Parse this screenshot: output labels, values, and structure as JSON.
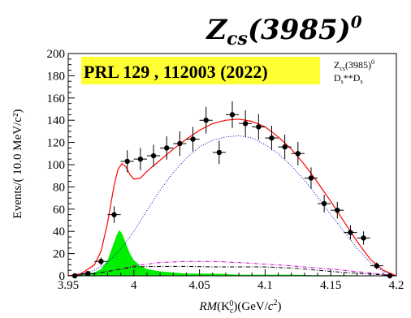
{
  "header": {
    "title_main": "Z",
    "title_sub": "cs",
    "title_rest": "(3985)",
    "title_sup": "0"
  },
  "chart_data": {
    "type": "scatter",
    "xlim": [
      3.95,
      4.2
    ],
    "ylim": [
      0,
      200
    ],
    "xticks": [
      "3.95",
      "4",
      "4.05",
      "4.1",
      "4.15",
      "4.2"
    ],
    "xtick_values": [
      3.95,
      4.0,
      4.05,
      4.1,
      4.15,
      4.2
    ],
    "yticks": [
      "0",
      "20",
      "40",
      "60",
      "80",
      "100",
      "120",
      "140",
      "160",
      "180",
      "200"
    ],
    "ytick_values": [
      0,
      20,
      40,
      60,
      80,
      100,
      120,
      140,
      160,
      180,
      200
    ],
    "ylabel": "Events/( 10.0 MeV/c²)",
    "xlabel": {
      "rm": "RM",
      "open": "(K",
      "sub": "c",
      "sup": "0",
      "close": ")(GeV/",
      "c": "c",
      "sq": "2",
      "end": ")"
    },
    "annotation": "PRL 129 , 112003 (2022)",
    "annotation_bg": "#ffff33",
    "annotation_color": "#dd0000",
    "legend": {
      "position": "top-right",
      "entries": [
        {
          "main": "Z",
          "sub": "cs",
          "rest": "(3985)",
          "sup": "0"
        },
        {
          "main": "D",
          "sub": "s",
          "rest": "**D",
          "sub2": "s"
        }
      ]
    },
    "data_points": [
      {
        "x": 3.955,
        "y": 0,
        "err": 1
      },
      {
        "x": 3.965,
        "y": 2,
        "err": 1.5
      },
      {
        "x": 3.975,
        "y": 13,
        "err": 3.5
      },
      {
        "x": 3.985,
        "y": 55,
        "err": 7.5
      },
      {
        "x": 3.995,
        "y": 103,
        "err": 10
      },
      {
        "x": 4.005,
        "y": 105,
        "err": 10
      },
      {
        "x": 4.015,
        "y": 108,
        "err": 10
      },
      {
        "x": 4.025,
        "y": 115,
        "err": 10.5
      },
      {
        "x": 4.035,
        "y": 119,
        "err": 11
      },
      {
        "x": 4.045,
        "y": 123,
        "err": 11
      },
      {
        "x": 4.055,
        "y": 140,
        "err": 12
      },
      {
        "x": 4.065,
        "y": 111,
        "err": 10.5
      },
      {
        "x": 4.075,
        "y": 145,
        "err": 12
      },
      {
        "x": 4.085,
        "y": 137,
        "err": 12
      },
      {
        "x": 4.095,
        "y": 134,
        "err": 11.5
      },
      {
        "x": 4.105,
        "y": 124,
        "err": 11
      },
      {
        "x": 4.115,
        "y": 116,
        "err": 11
      },
      {
        "x": 4.125,
        "y": 110,
        "err": 10.5
      },
      {
        "x": 4.135,
        "y": 88,
        "err": 9.5
      },
      {
        "x": 4.145,
        "y": 65,
        "err": 8
      },
      {
        "x": 4.155,
        "y": 59,
        "err": 7.5
      },
      {
        "x": 4.165,
        "y": 39,
        "err": 6.5
      },
      {
        "x": 4.175,
        "y": 34,
        "err": 6
      },
      {
        "x": 4.185,
        "y": 9,
        "err": 3
      },
      {
        "x": 4.195,
        "y": 0,
        "err": 1
      }
    ],
    "total_fit": {
      "color": "#ff0000",
      "x": [
        3.95,
        3.96,
        3.97,
        3.975,
        3.98,
        3.985,
        3.988,
        3.991,
        3.994,
        3.997,
        4.0,
        4.005,
        4.01,
        4.02,
        4.03,
        4.04,
        4.05,
        4.06,
        4.07,
        4.08,
        4.09,
        4.1,
        4.11,
        4.12,
        4.13,
        4.14,
        4.15,
        4.16,
        4.17,
        4.18,
        4.19,
        4.2
      ],
      "y": [
        0,
        2,
        10,
        22,
        48,
        82,
        96,
        101,
        98,
        91,
        87,
        88,
        94,
        104,
        114,
        123,
        131,
        137,
        140,
        141,
        139,
        134,
        125,
        114,
        100,
        84,
        67,
        49,
        31,
        15,
        5,
        0
      ]
    },
    "background_fit": {
      "color": "#0000cc",
      "x": [
        3.95,
        3.96,
        3.97,
        3.98,
        3.99,
        4.0,
        4.01,
        4.02,
        4.03,
        4.04,
        4.05,
        4.06,
        4.07,
        4.08,
        4.09,
        4.1,
        4.11,
        4.12,
        4.13,
        4.14,
        4.15,
        4.16,
        4.17,
        4.18,
        4.19,
        4.2
      ],
      "y": [
        0,
        1,
        5,
        12,
        24,
        40,
        59,
        77,
        93,
        106,
        116,
        122,
        125,
        126,
        124,
        118,
        110,
        99,
        86,
        71,
        55,
        40,
        25,
        12,
        4,
        0
      ]
    },
    "signal": {
      "color": "#00ee00",
      "x": [
        3.95,
        3.96,
        3.97,
        3.975,
        3.98,
        3.984,
        3.987,
        3.989,
        3.991,
        3.994,
        3.997,
        4.0,
        4.005,
        4.01,
        4.02,
        4.03,
        4.04,
        4.06,
        4.08,
        4.1,
        4.12,
        4.14,
        4.16,
        4.18,
        4.2
      ],
      "y": [
        0,
        1,
        3,
        6,
        14,
        27,
        37,
        41,
        38,
        29,
        20,
        14,
        9,
        6,
        4,
        3,
        2,
        2,
        1,
        1,
        1,
        0.5,
        0.5,
        0.3,
        0
      ]
    },
    "ds_component": {
      "color": "#cc00cc",
      "x": [
        3.95,
        3.96,
        3.97,
        3.98,
        3.99,
        4.0,
        4.02,
        4.04,
        4.06,
        4.08,
        4.1,
        4.12,
        4.14,
        4.16,
        4.18,
        4.2
      ],
      "y": [
        0,
        1,
        2,
        4,
        6,
        9,
        12,
        13,
        13,
        12,
        10.5,
        9,
        7,
        5,
        2.5,
        0
      ]
    },
    "other_component": {
      "color": "#000000",
      "x": [
        3.95,
        3.96,
        3.97,
        3.98,
        3.99,
        4.0,
        4.02,
        4.04,
        4.06,
        4.08,
        4.1,
        4.12,
        4.14,
        4.16,
        4.18,
        4.2
      ],
      "y": [
        0,
        1,
        2,
        4,
        6,
        8,
        8.5,
        8.5,
        8,
        8,
        8,
        7,
        5,
        3,
        1.5,
        0
      ]
    }
  }
}
